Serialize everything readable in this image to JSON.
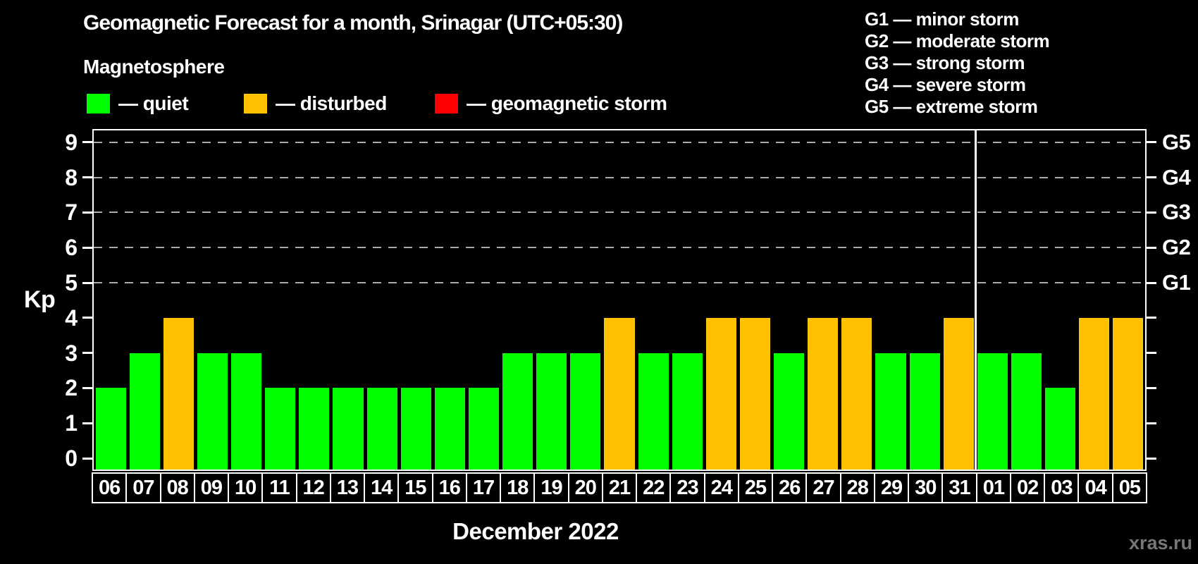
{
  "header": {
    "title": "Geomagnetic Forecast for a month, Srinagar (UTC+05:30)",
    "subtitle": "Magnetosphere"
  },
  "legend": {
    "items": [
      {
        "label": "— quiet",
        "status": "quiet"
      },
      {
        "label": "— disturbed",
        "status": "disturbed"
      },
      {
        "label": "— geomagnetic storm",
        "status": "storm"
      }
    ]
  },
  "g_legend": {
    "items": [
      "G1 — minor storm",
      "G2 — moderate storm",
      "G3 — strong storm",
      "G4 — severe storm",
      "G5 — extreme storm"
    ]
  },
  "axes": {
    "y_label": "Kp",
    "x_label": "December 2022",
    "yticks": [
      "0",
      "1",
      "2",
      "3",
      "4",
      "5",
      "6",
      "7",
      "8",
      "9"
    ],
    "g_labels": [
      "G1",
      "G2",
      "G3",
      "G4",
      "G5"
    ]
  },
  "colors": {
    "quiet": "#00ff00",
    "disturbed": "#ffc200",
    "storm": "#ff0000",
    "grid": "#ababab",
    "axis": "#ffffff",
    "watermark": "#777777"
  },
  "watermark": "xras.ru",
  "chart_data": {
    "type": "bar",
    "title": "Geomagnetic Forecast for a month, Srinagar (UTC+05:30)",
    "xlabel": "December 2022",
    "ylabel": "Kp",
    "ylim": [
      0,
      9.4
    ],
    "grid_levels": [
      5,
      6,
      7,
      8,
      9
    ],
    "right_axis_labels": {
      "5": "G1",
      "6": "G2",
      "7": "G3",
      "8": "G4",
      "9": "G5"
    },
    "legend_position": "top",
    "grid": "dashed horizontal at G-storm levels only",
    "categories": [
      "06",
      "07",
      "08",
      "09",
      "10",
      "11",
      "12",
      "13",
      "14",
      "15",
      "16",
      "17",
      "18",
      "19",
      "20",
      "21",
      "22",
      "23",
      "24",
      "25",
      "26",
      "27",
      "28",
      "29",
      "30",
      "31",
      "01",
      "02",
      "03",
      "04",
      "05"
    ],
    "values": [
      2,
      3,
      4,
      3,
      3,
      2,
      2,
      2,
      2,
      2,
      2,
      2,
      3,
      3,
      3,
      4,
      3,
      3,
      4,
      4,
      3,
      4,
      4,
      3,
      3,
      4,
      3,
      3,
      2,
      4,
      4
    ],
    "statuses": [
      "quiet",
      "quiet",
      "disturbed",
      "quiet",
      "quiet",
      "quiet",
      "quiet",
      "quiet",
      "quiet",
      "quiet",
      "quiet",
      "quiet",
      "quiet",
      "quiet",
      "quiet",
      "disturbed",
      "quiet",
      "quiet",
      "disturbed",
      "disturbed",
      "quiet",
      "disturbed",
      "disturbed",
      "quiet",
      "quiet",
      "disturbed",
      "quiet",
      "quiet",
      "quiet",
      "disturbed",
      "disturbed"
    ],
    "separator_index": 26
  }
}
